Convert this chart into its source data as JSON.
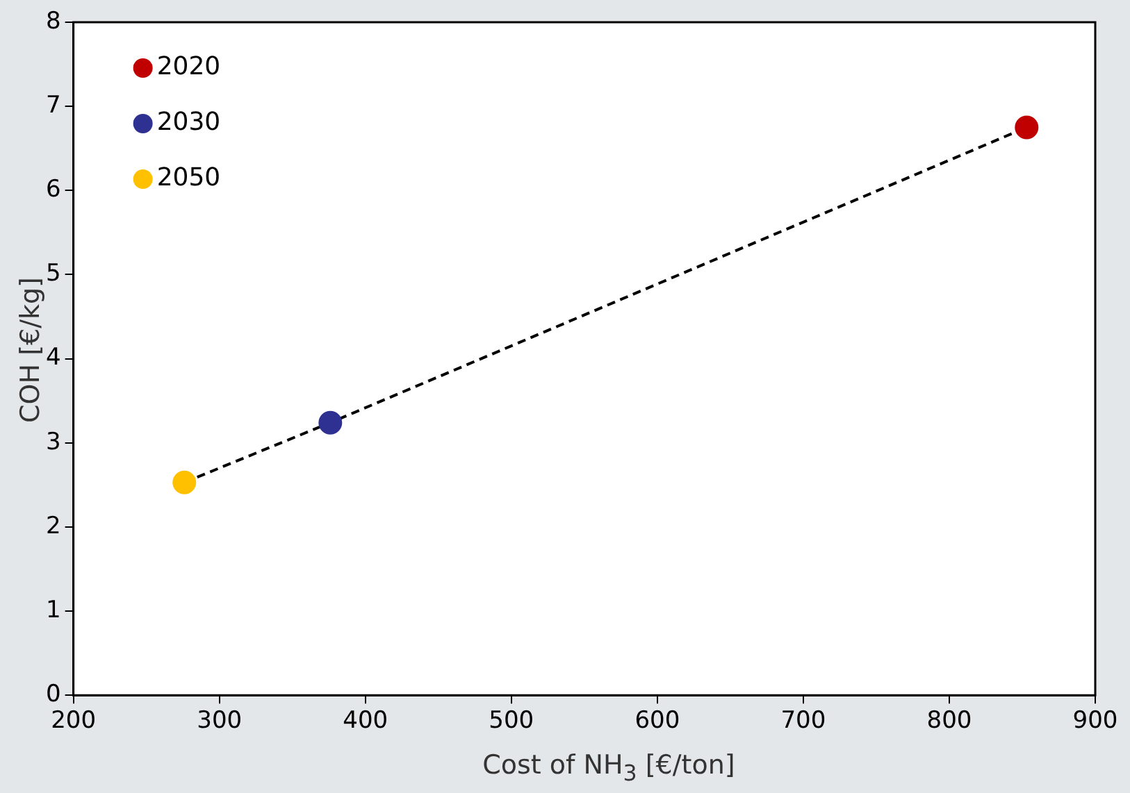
{
  "chart_data": {
    "type": "scatter",
    "xlabel": "Cost of NH$_{3}$ [€/ton]",
    "ylabel": "COH [€/kg]",
    "xlim": [
      200,
      900
    ],
    "xticks": [
      200,
      300,
      400,
      500,
      600,
      700,
      800,
      900
    ],
    "ylim": [
      0,
      8
    ],
    "yticks": [
      0,
      1,
      2,
      3,
      4,
      5,
      6,
      7,
      8
    ],
    "grid": false,
    "legend": "top left",
    "marker": "circle",
    "series": [
      {
        "type": "line",
        "color": "#000000",
        "line_style": "dashed",
        "marker": "none",
        "x": [
          276,
          376,
          853
        ],
        "values": [
          2.53,
          3.24,
          6.75
        ]
      },
      {
        "name": "2020",
        "color": "#c00000",
        "x": [
          853
        ],
        "values": [
          6.75
        ]
      },
      {
        "name": "2030",
        "color": "#2e3192",
        "x": [
          376
        ],
        "values": [
          3.24
        ]
      },
      {
        "name": "2050",
        "color": "#ffc000",
        "x": [
          276
        ],
        "values": [
          2.53
        ]
      }
    ]
  }
}
